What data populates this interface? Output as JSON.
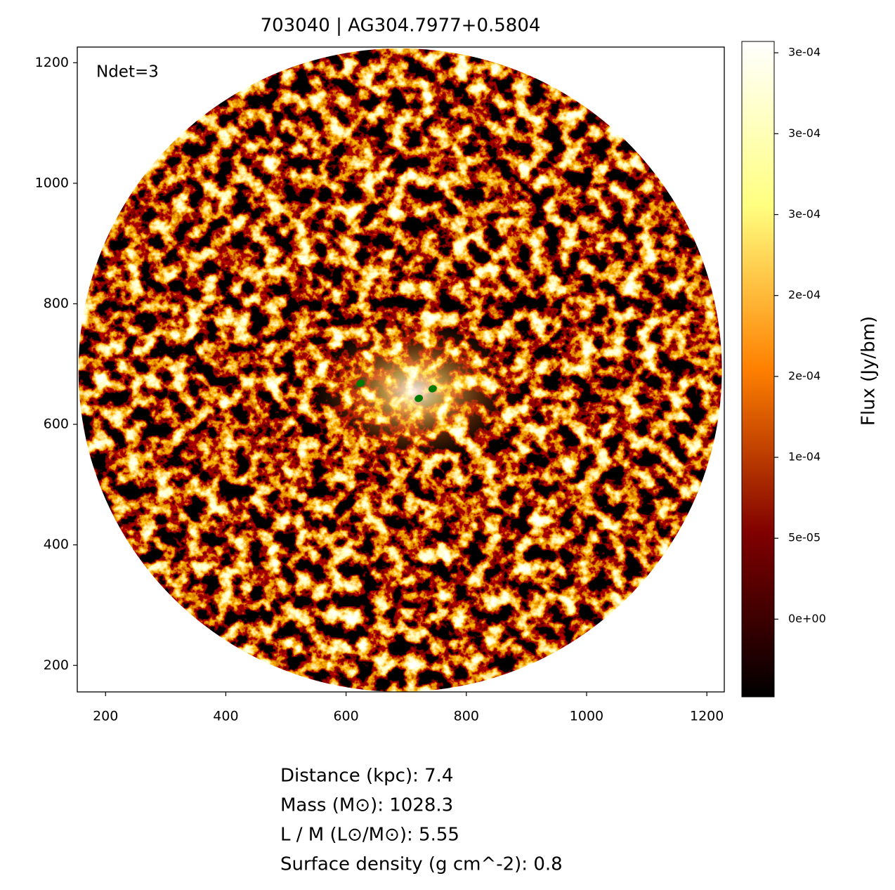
{
  "chart_data": {
    "type": "image",
    "title": "703040 | AG304.7977+0.5804",
    "annotation": "Ndet=3",
    "cmap": "afmhot",
    "xlim": [
      153,
      1229
    ],
    "ylim": [
      156,
      1226
    ],
    "xticks": [
      200,
      400,
      600,
      800,
      1000,
      1200
    ],
    "yticks": [
      200,
      400,
      600,
      800,
      1000,
      1200
    ],
    "footprint": {
      "center": [
        690,
        690
      ],
      "radius": 535
    },
    "detections": {
      "color": "#007a00",
      "x": [
        624,
        721,
        744
      ],
      "y": [
        668,
        643,
        659
      ]
    },
    "colorbar": {
      "label": "Flux (Jy/bm)",
      "lim": [
        -4.8e-05,
        0.000357
      ],
      "ticks": [
        {
          "value": 0,
          "label": "0e+00"
        },
        {
          "value": 5e-05,
          "label": "5e-05"
        },
        {
          "value": 0.0001,
          "label": "1e-04"
        },
        {
          "value": 0.00015,
          "label": "2e-04"
        },
        {
          "value": 0.0002,
          "label": "2e-04"
        },
        {
          "value": 0.00025,
          "label": "3e-04"
        },
        {
          "value": 0.0003,
          "label": "3e-04"
        },
        {
          "value": 0.00035,
          "label": "3e-04"
        }
      ]
    },
    "info": [
      "Distance (kpc): 7.4",
      "Mass (M⊙): 1028.3",
      "L / M (L⊙/M⊙): 5.55",
      "Surface density (g cm^-2): 0.8"
    ]
  }
}
